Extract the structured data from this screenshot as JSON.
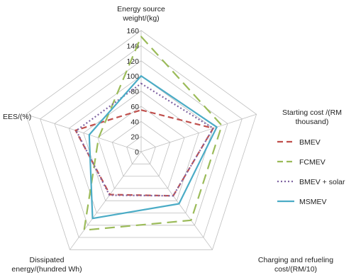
{
  "chart_data": {
    "type": "radar",
    "axes": [
      {
        "lines": [
          "Energy source",
          "weight/(kg)"
        ]
      },
      {
        "lines": [
          "Starting cost /(RM",
          "thousand)"
        ]
      },
      {
        "lines": [
          "Charging and refueling",
          "cost/(RM/10)"
        ]
      },
      {
        "lines": [
          "Dissipated",
          "energy/(hundred Wh)"
        ]
      },
      {
        "lines": [
          "EES/(%)"
        ]
      }
    ],
    "range": [
      0,
      160
    ],
    "ticks": [
      "0",
      "20",
      "40",
      "60",
      "80",
      "100",
      "120",
      "140",
      "160"
    ],
    "tick_values": [
      0,
      20,
      40,
      60,
      80,
      100,
      120,
      140,
      160
    ],
    "series": [
      {
        "name": "BMEV",
        "values": [
          55,
          100,
          72,
          70,
          91
        ],
        "color": "#c0504d",
        "dash": "8,5",
        "width": 2.2
      },
      {
        "name": "FCMEV",
        "values": [
          152,
          112,
          112,
          128,
          59
        ],
        "color": "#9bbb59",
        "dash": "14,8",
        "width": 2.2
      },
      {
        "name": "BMEV + solar",
        "values": [
          90,
          100,
          72,
          71,
          90
        ],
        "color": "#8064a2",
        "dash": "2,3",
        "width": 2.2
      },
      {
        "name": "MSMEV",
        "values": [
          100,
          105,
          85,
          109,
          72
        ],
        "color": "#4bacc6",
        "dash": "",
        "width": 2.2
      }
    ]
  }
}
